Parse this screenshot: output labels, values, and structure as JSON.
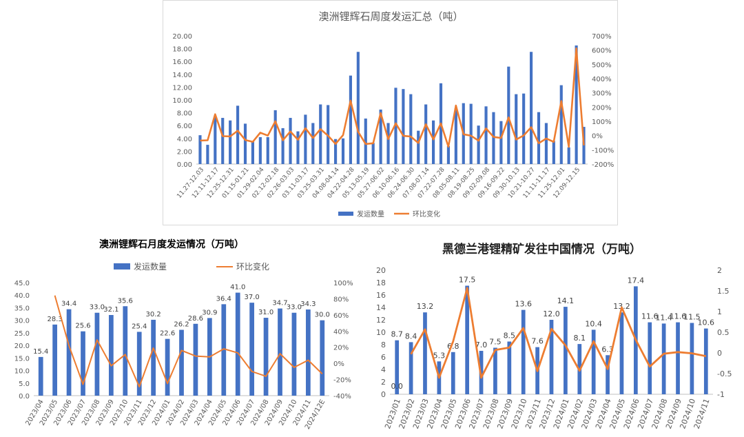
{
  "colors": {
    "bar": "#4472C4",
    "line": "#ED7D31",
    "axis_text": "#595959",
    "grid": "#d9d9d9"
  },
  "chart_data": [
    {
      "id": "weekly",
      "type": "bar",
      "title": "澳洲锂辉石周度发运汇总（吨）",
      "legend": {
        "bar": "发运数量",
        "line": "环比变化",
        "position": "bottom"
      },
      "ylim": [
        0,
        20
      ],
      "y_ticks": [
        "0.00",
        "2.00",
        "4.00",
        "6.00",
        "8.00",
        "10.00",
        "12.00",
        "14.00",
        "16.00",
        "18.00",
        "20.00"
      ],
      "y2lim": [
        -200,
        700
      ],
      "y2_ticks": [
        "-200%",
        "-100%",
        "0%",
        "100%",
        "200%",
        "300%",
        "400%",
        "500%",
        "600%",
        "700%"
      ],
      "x_tick_labels": [
        "11.27-12.03",
        "12.11-12.17",
        "12.25-12.31",
        "01.15-01.21",
        "01.29-02.04",
        "02.12-02.18",
        "02.26-03.03",
        "03.11-03.17",
        "03.25-03.31",
        "04.08-04.14",
        "04.22-04.28",
        "05.13-05.19",
        "05.27-06.02",
        "06.10-06.16",
        "06.24-06.30",
        "07.08-07.14",
        "07.22-07.28",
        "08.05-08.11",
        "08.19-08.25",
        "09.02-09.08",
        "09.16-09.22",
        "09.30-10.13",
        "10.21-10.27",
        "11.11-11.17",
        "11.25-12.01",
        "12.09-12.15"
      ],
      "values": [
        4.5,
        3.0,
        7.5,
        7.2,
        6.8,
        9.1,
        6.3,
        3.5,
        4.2,
        4.2,
        8.4,
        5.6,
        7.2,
        5.1,
        7.7,
        6.4,
        9.3,
        9.2,
        3.9,
        4.0,
        13.8,
        17.5,
        7.1,
        3.3,
        8.5,
        6.4,
        11.9,
        11.7,
        10.9,
        5.2,
        9.3,
        6.8,
        12.6,
        2.8,
        8.7,
        9.5,
        9.4,
        6.0,
        9.0,
        8.1,
        6.7,
        15.2,
        10.9,
        11.0,
        17.5,
        8.1,
        6.4,
        3.6,
        12.3,
        2.6,
        18.5,
        5.8
      ],
      "pct": [
        -35,
        -33,
        150,
        -4,
        -6,
        34,
        -31,
        -44,
        20,
        0,
        100,
        -33,
        29,
        -29,
        51,
        -17,
        45,
        -1,
        -58,
        3,
        245,
        27,
        -59,
        -54,
        158,
        -25,
        86,
        -2,
        -7,
        -52,
        79,
        -27,
        85,
        -78,
        211,
        9,
        -1,
        -36,
        50,
        -10,
        -17,
        127,
        -28,
        1,
        59,
        -54,
        -21,
        -44,
        242,
        -79,
        612,
        -69
      ]
    },
    {
      "id": "monthly",
      "type": "bar",
      "title": "澳洲锂辉石月度发运情况（万吨）",
      "legend": {
        "bar": "发运数量",
        "line": "环比变化",
        "position": "top"
      },
      "ylim": [
        0,
        45
      ],
      "y_ticks": [
        "0.0",
        "5.0",
        "10.0",
        "15.0",
        "20.0",
        "25.0",
        "30.0",
        "35.0",
        "40.0",
        "45.0"
      ],
      "y2lim": [
        -40,
        100
      ],
      "y2_ticks": [
        "-40%",
        "-20%",
        "0%",
        "20%",
        "40%",
        "60%",
        "80%",
        "100%"
      ],
      "categories": [
        "2023/04",
        "2023/05",
        "2023/06",
        "2023/07",
        "2023/08",
        "2023/09",
        "2023/10",
        "2023/11",
        "2023/12",
        "2024/01",
        "2024/02",
        "2024/03",
        "2024/04",
        "2024/05",
        "2024/06",
        "2024/07",
        "2024/08",
        "2024/09",
        "2024/10",
        "2024/11",
        "2024/12E"
      ],
      "values": [
        15.4,
        28.3,
        34.4,
        25.6,
        33.0,
        32.1,
        35.6,
        25.4,
        30.2,
        22.6,
        26.2,
        28.6,
        30.9,
        36.4,
        41.0,
        37.0,
        31.0,
        34.7,
        33.0,
        34.3,
        30.0
      ],
      "labels": [
        "15.4",
        "28.3",
        "34.4",
        "25.6",
        "33.0",
        "32.1",
        "35.6",
        "25.4",
        "30.2",
        "22.6",
        "26.2",
        "28.6",
        "30.9",
        "36.4",
        "41.0",
        "37.0",
        "31.0",
        "34.7",
        "33.0",
        "34.3",
        "30.0"
      ],
      "pct": [
        null,
        84,
        22,
        -26,
        29,
        -3,
        11,
        -29,
        19,
        -25,
        16,
        9,
        8,
        18,
        13,
        -10,
        -16,
        12,
        -5,
        4,
        -13
      ]
    },
    {
      "id": "hedland",
      "type": "bar",
      "title": "黑德兰港锂精矿发往中国情况（万吨）",
      "ylim": [
        0,
        20
      ],
      "y_ticks": [
        "0",
        "2",
        "4",
        "6",
        "8",
        "10",
        "12",
        "14",
        "16",
        "18",
        "20"
      ],
      "y2lim": [
        -1,
        2
      ],
      "y2_ticks": [
        "-1",
        "-0.5",
        "0",
        "0.5",
        "1",
        "1.5",
        "2"
      ],
      "categories": [
        "2023/01",
        "2023/02",
        "2023/03",
        "2023/04",
        "2023/05",
        "2023/06",
        "2023/07",
        "2023/08",
        "2023/09",
        "2023/10",
        "2023/11",
        "2023/12",
        "2024/01",
        "2024/02",
        "2024/03",
        "2024/04",
        "2024/05",
        "2024/06",
        "2024/07",
        "2024/08",
        "2024/09",
        "2024/10",
        "2024/11"
      ],
      "values": [
        8.7,
        8.4,
        13.2,
        5.3,
        6.8,
        17.5,
        7.0,
        7.5,
        8.5,
        13.6,
        7.6,
        12.0,
        14.1,
        8.1,
        10.4,
        6.3,
        13.2,
        17.4,
        11.6,
        11.4,
        11.6,
        11.5,
        10.6
      ],
      "labels": [
        "8.7",
        "8.4",
        "13.2",
        "5.3",
        "6.8",
        "17.5",
        "7.0",
        "7.5",
        "8.5",
        "13.6",
        "7.6",
        "12.0",
        "14.1",
        "8.1",
        "10.4",
        "6.3",
        "13.2",
        "17.4",
        "11.6",
        "11.4",
        "11.6",
        "11.5",
        "10.6"
      ],
      "line_zero_label": "0.0",
      "pct": [
        null,
        -0.03,
        0.57,
        -0.6,
        0.28,
        1.57,
        -0.6,
        0.07,
        0.13,
        0.6,
        -0.44,
        0.58,
        0.18,
        -0.43,
        0.28,
        -0.39,
        1.1,
        0.32,
        -0.33,
        -0.02,
        0.02,
        -0.01,
        -0.08
      ]
    }
  ]
}
